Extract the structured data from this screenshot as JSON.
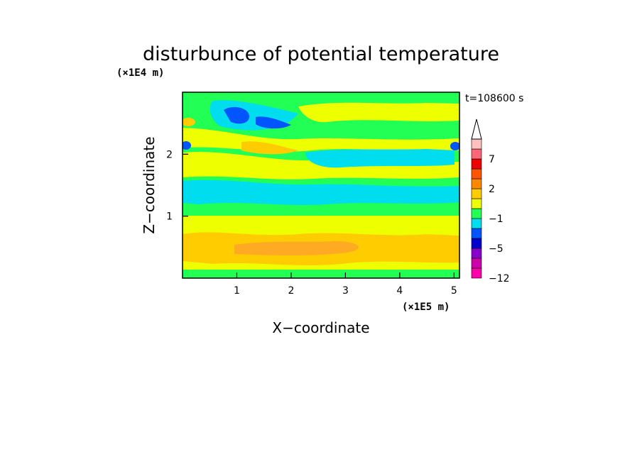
{
  "chart_data": {
    "type": "heatmap",
    "title": "disturbunce of potential temperature",
    "time_label": "t=108600 s",
    "xlabel": "X−coordinate",
    "ylabel": "Z−coordinate",
    "x_unit": "(×1E5 m)",
    "y_unit": "(×1E4 m)",
    "xlim": [
      0,
      5.1
    ],
    "ylim": [
      0,
      3.0
    ],
    "x_ticks": [
      "1",
      "2",
      "3",
      "4",
      "5"
    ],
    "y_ticks": [
      "1",
      "2"
    ],
    "colorbar": {
      "colors": [
        "#ff00aa",
        "#cc00aa",
        "#8800cc",
        "#0000cc",
        "#0055ff",
        "#00ddee",
        "#22ff55",
        "#eeff00",
        "#ffcc00",
        "#ff8800",
        "#ff5500",
        "#ee0000",
        "#ff6677",
        "#ffc0c0"
      ],
      "labels": [
        "−12",
        "−5",
        "−1",
        "2",
        "7"
      ],
      "extend_max": true
    },
    "field_bands": [
      {
        "z": [
          0.0,
          0.08
        ],
        "value": "−1 to 1"
      },
      {
        "z": [
          0.08,
          0.35
        ],
        "value": "1 to 2"
      },
      {
        "z": [
          0.35,
          0.6
        ],
        "value": "2 to 4"
      },
      {
        "z": [
          0.6,
          0.9
        ],
        "value": "1 to 2"
      },
      {
        "z": [
          0.9,
          1.1
        ],
        "value": "−1 to 0"
      },
      {
        "z": [
          1.2,
          1.6
        ],
        "value": "−2 to −1"
      },
      {
        "z": [
          1.6,
          1.8
        ],
        "value": "0 to 1"
      },
      {
        "z": [
          1.8,
          2.2
        ],
        "value": "1 to 3"
      },
      {
        "z": [
          2.4,
          2.7
        ],
        "value": "−5 to −2"
      },
      {
        "z": [
          2.7,
          3.0
        ],
        "value": "0 to 1"
      }
    ]
  }
}
